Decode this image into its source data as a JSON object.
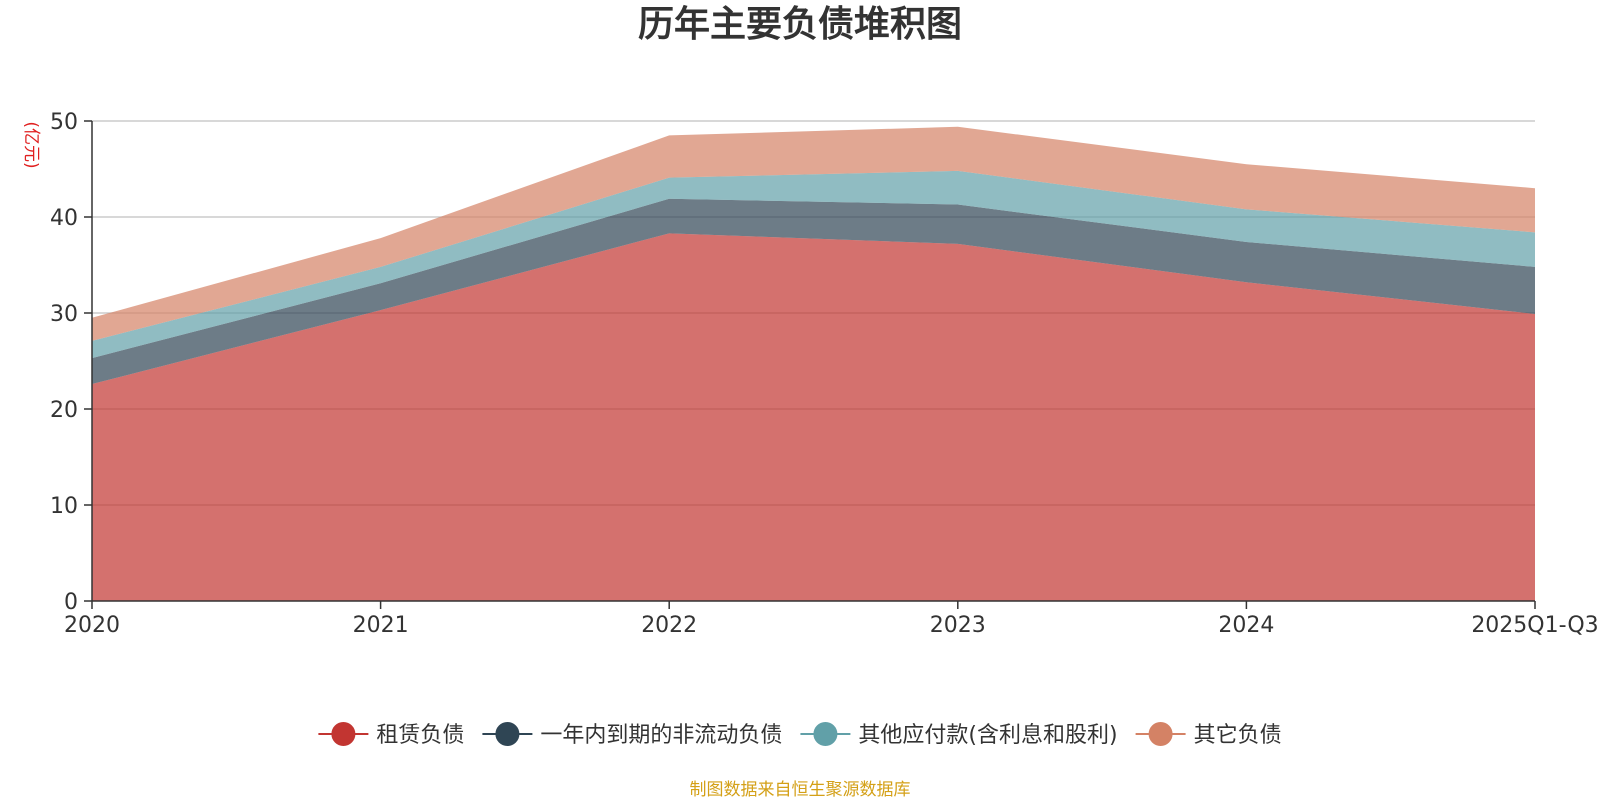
{
  "chart_data": {
    "type": "area",
    "stacked": true,
    "title": "历年主要负债堆积图",
    "ylabel": "(亿元)",
    "ylim": [
      0,
      50
    ],
    "yticks": [
      0,
      10,
      20,
      30,
      40,
      50
    ],
    "categories": [
      "2020",
      "2021",
      "2022",
      "2023",
      "2024",
      "2025Q1-Q3"
    ],
    "series": [
      {
        "name": "租赁负债",
        "color": "#c23531",
        "values": [
          22.6,
          30.3,
          38.3,
          37.2,
          33.2,
          29.9
        ]
      },
      {
        "name": "一年内到期的非流动负债",
        "color": "#2f4554",
        "values": [
          2.7,
          2.8,
          3.6,
          4.1,
          4.2,
          4.9
        ]
      },
      {
        "name": "其他应付款(含利息和股利)",
        "color": "#61a0a8",
        "values": [
          1.8,
          1.7,
          2.2,
          3.5,
          3.4,
          3.6
        ]
      },
      {
        "name": "其它负债",
        "color": "#d48265",
        "values": [
          2.4,
          3.0,
          4.4,
          4.6,
          4.7,
          4.6
        ]
      }
    ],
    "legend_position": "bottom",
    "source_note": "制图数据来自恒生聚源数据库"
  }
}
